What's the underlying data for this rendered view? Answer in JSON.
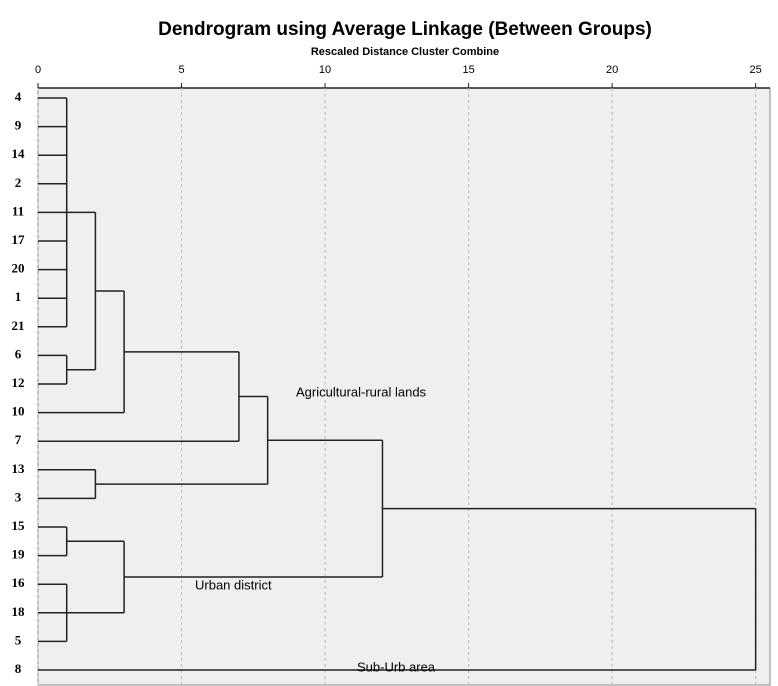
{
  "chart_data": {
    "type": "dendrogram",
    "title": "Dendrogram using Average Linkage (Between Groups)",
    "x_label": "Rescaled Distance Cluster Combine",
    "xlim": [
      0,
      25.5
    ],
    "xticks": [
      0,
      5,
      10,
      15,
      20,
      25
    ],
    "grid": true,
    "tree": {
      "height": 25,
      "children": [
        {
          "height": 12,
          "children": [
            {
              "height": 8,
              "children": [
                {
                  "height": 7,
                  "children": [
                    {
                      "height": 3,
                      "children": [
                        {
                          "height": 2,
                          "children": [
                            {
                              "height": 1,
                              "children": [
                                "4",
                                "9",
                                "14",
                                "2",
                                "11",
                                "17",
                                "20",
                                "1",
                                "21"
                              ]
                            },
                            {
                              "height": 1,
                              "children": [
                                "6",
                                "12"
                              ]
                            }
                          ]
                        },
                        "10"
                      ]
                    },
                    "7"
                  ]
                },
                {
                  "height": 2,
                  "children": [
                    "13",
                    "3"
                  ]
                }
              ]
            },
            {
              "height": 3,
              "children": [
                {
                  "height": 1,
                  "children": [
                    "15",
                    "19"
                  ]
                },
                {
                  "height": 1,
                  "children": [
                    "16",
                    "18",
                    "5"
                  ]
                }
              ]
            }
          ]
        },
        "8"
      ]
    },
    "annotations": [
      "Agricultural-rural lands",
      "Urban district",
      "Sub-Urb area"
    ]
  }
}
